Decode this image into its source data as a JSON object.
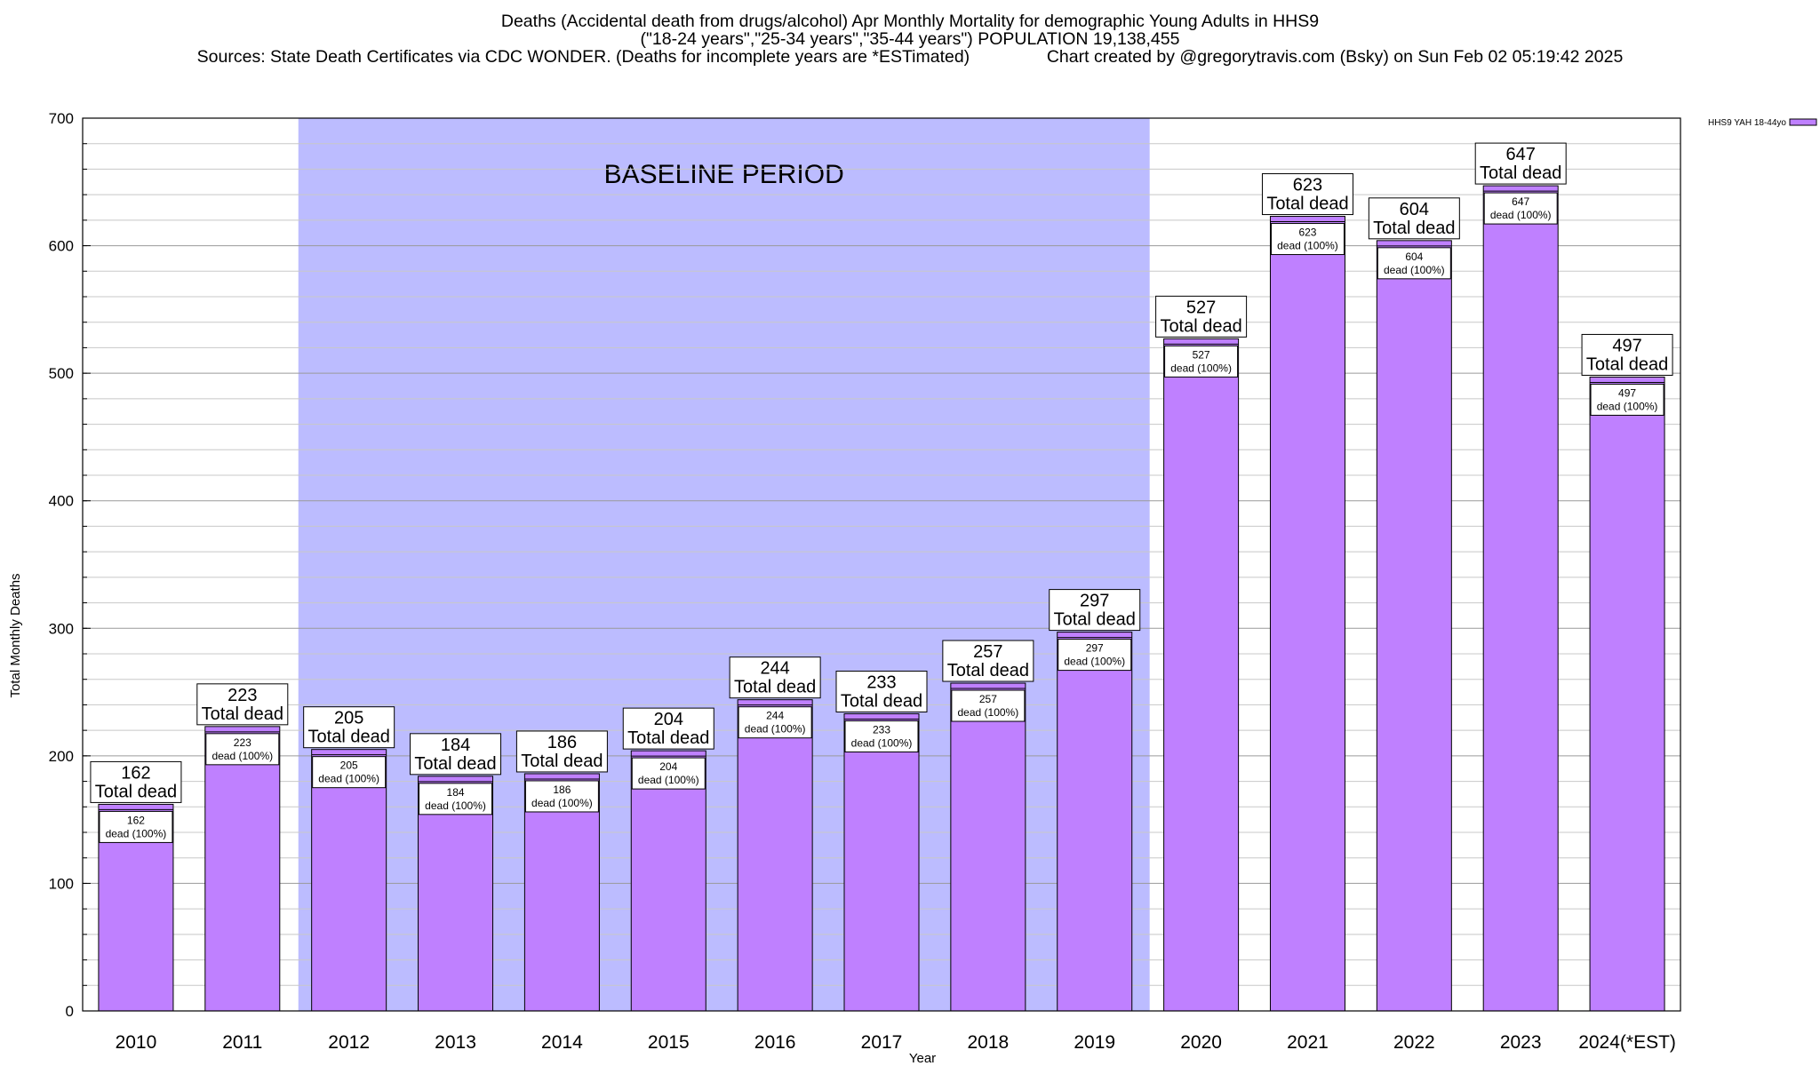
{
  "titles": {
    "line1": "Deaths (Accidental death from drugs/alcohol) Apr Monthly Mortality for demographic Young Adults in HHS9",
    "line2": "(\"18-24 years\",\"25-34 years\",\"35-44 years\") POPULATION 19,138,455",
    "line3": "Sources: State Death Certificates via CDC WONDER. (Deaths for incomplete years are *ESTimated)                Chart created by @gregorytravis.com (Bsky) on Sun Feb 02 05:19:42 2025"
  },
  "chart_data": {
    "type": "bar",
    "xlabel": "Year",
    "ylabel": "Total Monthly Deaths",
    "ylim": [
      0,
      700
    ],
    "yticks": [
      0,
      100,
      200,
      300,
      400,
      500,
      600,
      700
    ],
    "minor_gridline_step": 20,
    "grid": true,
    "categories": [
      "2010",
      "2011",
      "2012",
      "2013",
      "2014",
      "2015",
      "2016",
      "2017",
      "2018",
      "2019",
      "2020",
      "2021",
      "2022",
      "2023",
      "2024(*EST)"
    ],
    "series": [
      {
        "name": "HHS9 YAH 18-44yo",
        "color": "#bf80ff",
        "values": [
          162,
          223,
          205,
          184,
          186,
          204,
          244,
          233,
          257,
          297,
          527,
          623,
          604,
          647,
          497
        ]
      }
    ],
    "total_label_suffix": "Total dead",
    "inner_label_suffix": "dead (100%)",
    "baseline_period": {
      "label": "BASELINE PERIOD",
      "from": "2012",
      "to": "2019",
      "color": "#bcbcff"
    },
    "legend_placement": "top-right"
  }
}
